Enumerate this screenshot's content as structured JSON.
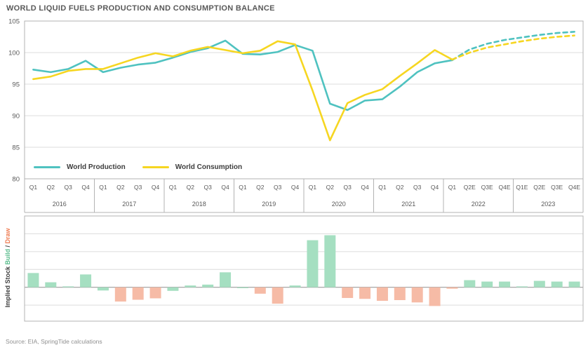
{
  "title": "WORLD LIQUID FUELS PRODUCTION AND CONSUMPTION BALANCE",
  "source_note": "Source: EIA, SpringTide calculations",
  "colors": {
    "production": "#4fc2c0",
    "consumption": "#f6d621",
    "build": "#a5dfc1",
    "draw": "#f6bba6",
    "grid": "#dcdcdc",
    "frame": "#b3b3b3",
    "zero_line": "#9b9b9b",
    "axis_text": "#595959",
    "legend_text": "#3d3d3d",
    "build_label": "#5bbd8e",
    "draw_label": "#ef7b51"
  },
  "legend": {
    "items": [
      {
        "label": "World Production",
        "color_key": "production"
      },
      {
        "label": "World Consumption",
        "color_key": "consumption"
      }
    ]
  },
  "bottom_ylabel": {
    "part1": "Implied Stock ",
    "build": "Build",
    "sep": " / ",
    "draw": "Draw"
  },
  "chart_data": [
    {
      "type": "line",
      "title": "WORLD LIQUID FUELS PRODUCTION AND CONSUMPTION BALANCE",
      "ylabel": "",
      "ylim": [
        80,
        105
      ],
      "yticks": [
        105,
        100,
        95,
        90,
        85,
        80
      ],
      "gridlines_at": [
        100,
        95,
        90,
        85
      ],
      "legend_position": "inside-bottom-left",
      "estimate_dashed_from_index": 24,
      "years": [
        {
          "label": "2016",
          "quarters": [
            "Q1",
            "Q2",
            "Q3",
            "Q4"
          ]
        },
        {
          "label": "2017",
          "quarters": [
            "Q1",
            "Q2",
            "Q3",
            "Q4"
          ]
        },
        {
          "label": "2018",
          "quarters": [
            "Q1",
            "Q2",
            "Q3",
            "Q4"
          ]
        },
        {
          "label": "2019",
          "quarters": [
            "Q1",
            "Q2",
            "Q3",
            "Q4"
          ]
        },
        {
          "label": "2020",
          "quarters": [
            "Q1",
            "Q2",
            "Q3",
            "Q4"
          ]
        },
        {
          "label": "2021",
          "quarters": [
            "Q1",
            "Q2",
            "Q3",
            "Q4"
          ]
        },
        {
          "label": "2022",
          "quarters": [
            "Q1",
            "Q2E",
            "Q3E",
            "Q4E"
          ]
        },
        {
          "label": "2023",
          "quarters": [
            "Q1E",
            "Q2E",
            "Q3E",
            "Q4E"
          ]
        }
      ],
      "series": [
        {
          "name": "World Production",
          "color_key": "production",
          "values": [
            97.3,
            96.9,
            97.4,
            98.7,
            96.9,
            97.6,
            98.1,
            98.4,
            99.2,
            100.1,
            100.7,
            101.9,
            99.8,
            99.7,
            100.1,
            101.2,
            100.3,
            91.9,
            90.9,
            92.4,
            92.6,
            94.6,
            96.9,
            98.3,
            98.8,
            100.5,
            101.4,
            102.0,
            102.4,
            102.8,
            103.1,
            103.3
          ]
        },
        {
          "name": "World Consumption",
          "color_key": "consumption",
          "values": [
            95.8,
            96.2,
            97.1,
            97.4,
            97.4,
            98.3,
            99.2,
            99.9,
            99.4,
            100.3,
            100.9,
            100.4,
            99.9,
            100.3,
            101.8,
            101.3,
            94.0,
            86.1,
            92.0,
            93.3,
            94.2,
            96.3,
            98.3,
            100.4,
            98.9,
            100.0,
            100.8,
            101.3,
            101.8,
            102.2,
            102.5,
            102.7
          ]
        }
      ]
    },
    {
      "type": "bar",
      "ylabel": "Implied Stock Build / Draw",
      "ylim": [
        -1.9,
        4.0
      ],
      "gridlines_at": [
        3,
        2,
        1,
        0,
        -1
      ],
      "yticks": [],
      "bars": [
        {
          "v": 0.8,
          "c": "build"
        },
        {
          "v": 0.28,
          "c": "build"
        },
        {
          "v": 0.05,
          "c": "build"
        },
        {
          "v": 0.72,
          "c": "build"
        },
        {
          "v": -0.18,
          "c": "build"
        },
        {
          "v": -0.8,
          "c": "draw"
        },
        {
          "v": -0.7,
          "c": "draw"
        },
        {
          "v": -0.62,
          "c": "draw"
        },
        {
          "v": -0.2,
          "c": "build"
        },
        {
          "v": 0.1,
          "c": "build"
        },
        {
          "v": 0.15,
          "c": "build"
        },
        {
          "v": 0.84,
          "c": "build"
        },
        {
          "v": -0.05,
          "c": "build"
        },
        {
          "v": -0.36,
          "c": "draw"
        },
        {
          "v": -0.92,
          "c": "draw"
        },
        {
          "v": 0.1,
          "c": "build"
        },
        {
          "v": 2.64,
          "c": "build"
        },
        {
          "v": 2.92,
          "c": "build"
        },
        {
          "v": -0.6,
          "c": "draw"
        },
        {
          "v": -0.65,
          "c": "draw"
        },
        {
          "v": -0.76,
          "c": "draw"
        },
        {
          "v": -0.72,
          "c": "draw"
        },
        {
          "v": -0.85,
          "c": "draw"
        },
        {
          "v": -1.05,
          "c": "draw"
        },
        {
          "v": -0.08,
          "c": "draw"
        },
        {
          "v": 0.4,
          "c": "build"
        },
        {
          "v": 0.32,
          "c": "build"
        },
        {
          "v": 0.32,
          "c": "build"
        },
        {
          "v": 0.05,
          "c": "build"
        },
        {
          "v": 0.36,
          "c": "build"
        },
        {
          "v": 0.32,
          "c": "build"
        },
        {
          "v": 0.32,
          "c": "build"
        }
      ]
    }
  ]
}
